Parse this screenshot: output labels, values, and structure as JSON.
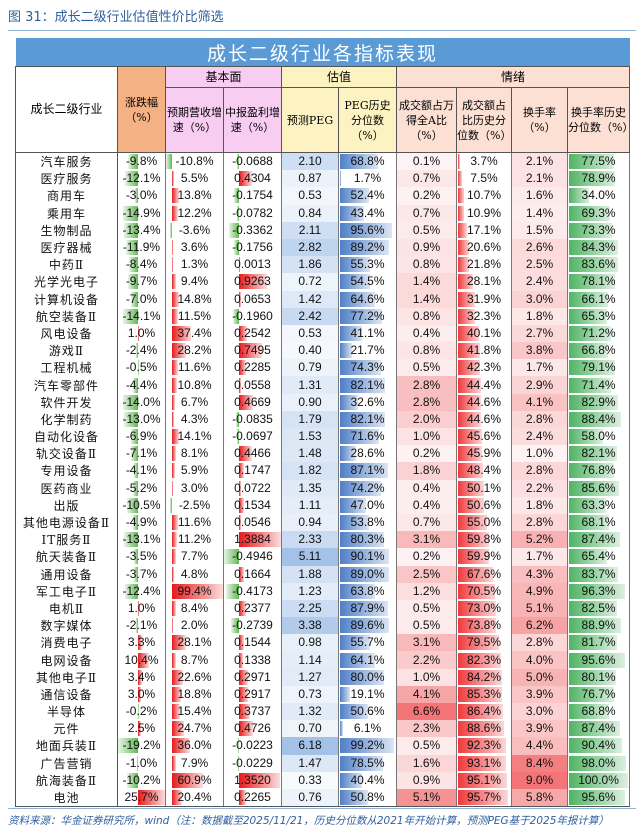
{
  "figure_title": "图 31：成长二级行业估值性价比筛选",
  "table": {
    "banner": "成长二级行业各指标表现",
    "groups": {
      "fundamentals": "基本面",
      "valuation": "估值",
      "sentiment": "情绪"
    },
    "columns": [
      "成长二级行业",
      "涨跌幅（%）",
      "预期营收增速（%）",
      "中报盈利增速（%）",
      "预测PEG",
      "PEG历史分位数（%）",
      "成交额占万得全A比（%）",
      "成交额占比历史分位数（%）",
      "换手率（%）",
      "换手率历史分位数（%）"
    ],
    "rows": [
      [
        "汽车服务",
        "-9.8%",
        "-10.8%",
        "-0.0688",
        "2.10",
        "68.8%",
        "0.1%",
        "3.7%",
        "2.1%",
        "77.5%"
      ],
      [
        "医疗服务",
        "-12.1%",
        "5.5%",
        "0.4304",
        "0.87",
        "1.7%",
        "0.7%",
        "7.5%",
        "2.1%",
        "78.9%"
      ],
      [
        "商用车",
        "-3.0%",
        "13.8%",
        "-0.1754",
        "0.53",
        "52.4%",
        "0.2%",
        "10.7%",
        "1.6%",
        "34.0%"
      ],
      [
        "乘用车",
        "-14.9%",
        "12.2%",
        "-0.0782",
        "0.84",
        "43.4%",
        "0.7%",
        "10.9%",
        "1.4%",
        "69.3%"
      ],
      [
        "生物制品",
        "-13.4%",
        "-3.6%",
        "-0.3362",
        "2.11",
        "95.6%",
        "0.5%",
        "17.1%",
        "1.5%",
        "73.3%"
      ],
      [
        "医疗器械",
        "-11.9%",
        "3.6%",
        "-0.1756",
        "2.82",
        "89.2%",
        "0.9%",
        "20.6%",
        "2.6%",
        "84.3%"
      ],
      [
        "中药Ⅱ",
        "-8.4%",
        "1.3%",
        "0.0013",
        "1.86",
        "55.3%",
        "0.8%",
        "21.8%",
        "2.5%",
        "83.6%"
      ],
      [
        "光学光电子",
        "-9.7%",
        "9.4%",
        "0.9263",
        "0.72",
        "54.5%",
        "1.4%",
        "28.1%",
        "2.4%",
        "78.1%"
      ],
      [
        "计算机设备",
        "-7.0%",
        "14.8%",
        "0.0653",
        "1.42",
        "64.6%",
        "1.4%",
        "31.9%",
        "3.0%",
        "66.1%"
      ],
      [
        "航空装备Ⅱ",
        "-14.1%",
        "11.5%",
        "-0.1960",
        "2.42",
        "77.2%",
        "0.8%",
        "32.3%",
        "1.8%",
        "65.3%"
      ],
      [
        "风电设备",
        "1.0%",
        "37.4%",
        "0.2542",
        "0.53",
        "41.1%",
        "0.4%",
        "40.1%",
        "2.7%",
        "71.2%"
      ],
      [
        "游戏Ⅱ",
        "-2.4%",
        "28.2%",
        "0.7495",
        "0.40",
        "21.7%",
        "0.8%",
        "41.8%",
        "3.8%",
        "66.8%"
      ],
      [
        "工程机械",
        "-0.5%",
        "11.6%",
        "0.2285",
        "0.79",
        "74.3%",
        "0.5%",
        "42.3%",
        "1.7%",
        "79.1%"
      ],
      [
        "汽车零部件",
        "-4.4%",
        "10.8%",
        "0.0558",
        "1.31",
        "82.1%",
        "2.8%",
        "44.4%",
        "2.9%",
        "71.4%"
      ],
      [
        "软件开发",
        "-14.0%",
        "6.7%",
        "0.4669",
        "0.90",
        "32.6%",
        "2.8%",
        "44.6%",
        "4.1%",
        "82.9%"
      ],
      [
        "化学制药",
        "-13.0%",
        "4.3%",
        "-0.0835",
        "1.79",
        "82.1%",
        "2.0%",
        "44.6%",
        "2.8%",
        "88.4%"
      ],
      [
        "自动化设备",
        "-6.9%",
        "14.1%",
        "-0.0697",
        "1.53",
        "71.6%",
        "1.0%",
        "45.6%",
        "2.4%",
        "58.0%"
      ],
      [
        "轨交设备Ⅱ",
        "-7.1%",
        "8.1%",
        "0.4466",
        "1.48",
        "28.6%",
        "0.2%",
        "45.9%",
        "1.0%",
        "82.1%"
      ],
      [
        "专用设备",
        "-4.1%",
        "5.9%",
        "0.1747",
        "1.82",
        "87.1%",
        "1.8%",
        "48.4%",
        "2.8%",
        "76.8%"
      ],
      [
        "医药商业",
        "-5.2%",
        "3.0%",
        "0.0722",
        "1.35",
        "74.2%",
        "0.4%",
        "50.1%",
        "2.2%",
        "85.6%"
      ],
      [
        "出版",
        "-10.5%",
        "-2.5%",
        "0.1534",
        "1.11",
        "47.0%",
        "0.4%",
        "50.6%",
        "1.8%",
        "63.3%"
      ],
      [
        "其他电源设备Ⅱ",
        "-4.9%",
        "11.6%",
        "0.0546",
        "0.94",
        "53.8%",
        "0.7%",
        "55.0%",
        "2.8%",
        "68.1%"
      ],
      [
        "IT服务Ⅱ",
        "-13.1%",
        "11.2%",
        "1.3884",
        "2.33",
        "80.3%",
        "3.1%",
        "59.8%",
        "5.2%",
        "87.4%"
      ],
      [
        "航天装备Ⅱ",
        "-3.5%",
        "7.7%",
        "-0.4946",
        "5.11",
        "90.1%",
        "0.2%",
        "59.9%",
        "1.7%",
        "65.4%"
      ],
      [
        "通用设备",
        "-3.7%",
        "4.8%",
        "0.1664",
        "1.88",
        "89.0%",
        "2.5%",
        "67.6%",
        "4.3%",
        "83.7%"
      ],
      [
        "军工电子Ⅱ",
        "-12.4%",
        "99.4%",
        "-0.4173",
        "1.23",
        "63.8%",
        "1.2%",
        "70.5%",
        "4.9%",
        "96.3%"
      ],
      [
        "电机Ⅱ",
        "1.0%",
        "8.4%",
        "0.2377",
        "2.25",
        "87.9%",
        "0.5%",
        "73.0%",
        "5.1%",
        "82.5%"
      ],
      [
        "数字媒体",
        "-2.1%",
        "2.0%",
        "-0.2739",
        "3.38",
        "89.6%",
        "0.5%",
        "73.8%",
        "6.2%",
        "88.9%"
      ],
      [
        "消费电子",
        "3.3%",
        "28.1%",
        "0.1544",
        "0.98",
        "55.7%",
        "3.1%",
        "79.5%",
        "2.8%",
        "81.7%"
      ],
      [
        "电网设备",
        "10.4%",
        "8.7%",
        "0.1338",
        "1.14",
        "64.1%",
        "2.2%",
        "82.3%",
        "4.0%",
        "95.6%"
      ],
      [
        "其他电子Ⅱ",
        "3.4%",
        "22.6%",
        "0.2971",
        "1.27",
        "80.0%",
        "1.0%",
        "84.2%",
        "5.0%",
        "80.1%"
      ],
      [
        "通信设备",
        "3.0%",
        "18.8%",
        "0.2917",
        "0.73",
        "19.1%",
        "4.1%",
        "85.3%",
        "3.9%",
        "76.7%"
      ],
      [
        "半导体",
        "-0.2%",
        "15.4%",
        "0.3737",
        "1.32",
        "50.6%",
        "6.6%",
        "86.4%",
        "3.0%",
        "68.8%"
      ],
      [
        "元件",
        "2.5%",
        "24.7%",
        "0.4726",
        "0.70",
        "6.1%",
        "2.3%",
        "88.6%",
        "3.9%",
        "87.4%"
      ],
      [
        "地面兵装Ⅱ",
        "-19.2%",
        "36.0%",
        "-0.0223",
        "6.18",
        "99.2%",
        "0.5%",
        "92.3%",
        "4.4%",
        "90.4%"
      ],
      [
        "广告营销",
        "-1.0%",
        "7.9%",
        "-0.0229",
        "1.47",
        "78.5%",
        "1.6%",
        "93.1%",
        "8.4%",
        "98.0%"
      ],
      [
        "航海装备Ⅱ",
        "-10.2%",
        "60.9%",
        "1.3520",
        "0.33",
        "40.4%",
        "0.9%",
        "95.1%",
        "9.0%",
        "100.0%"
      ],
      [
        "电池",
        "25.7%",
        "20.4%",
        "0.2265",
        "0.76",
        "50.8%",
        "5.1%",
        "95.7%",
        "5.8%",
        "95.6%"
      ]
    ]
  },
  "colors": {
    "banner": "#5b9bd5",
    "positive_bar": "#e8191c",
    "negative_bar": "#63b855",
    "peg_scale": "#9dbde6",
    "peg_hist_bar": "#4f7fc7",
    "amount_scale": "#f26b6d",
    "amount_hist_bar": "#f0393c",
    "turnover_scale": "#f26b6d",
    "turnover_hist_bar": "#4fb463"
  },
  "footnote": "资料来源：华金证券研究所，wind（注：数据截至2025/11/21，历史分位数从2021年开始计算，预测PEG基于2025年报计算）"
}
